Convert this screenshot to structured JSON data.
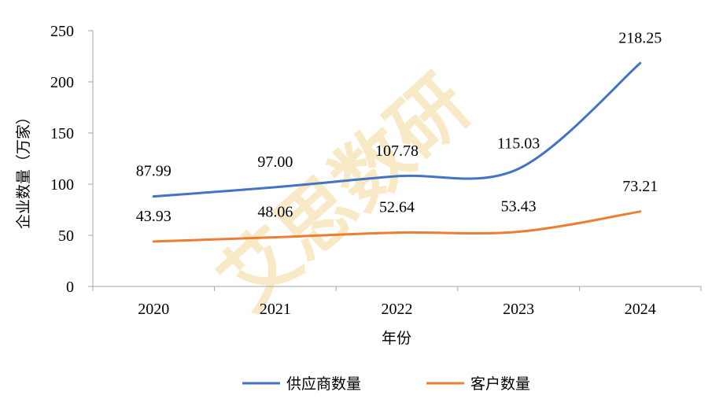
{
  "chart_data": {
    "type": "line",
    "categories": [
      "2020",
      "2021",
      "2022",
      "2023",
      "2024"
    ],
    "series": [
      {
        "name": "供应商数量",
        "values": [
          87.99,
          97.0,
          107.78,
          115.03,
          218.25
        ],
        "labels": [
          "87.99",
          "97.00",
          "107.78",
          "115.03",
          "218.25"
        ],
        "color": "#4472c4"
      },
      {
        "name": "客户数量",
        "values": [
          43.93,
          48.06,
          52.64,
          53.43,
          73.21
        ],
        "labels": [
          "43.93",
          "48.06",
          "52.64",
          "53.43",
          "73.21"
        ],
        "color": "#ed7d31"
      }
    ],
    "xlabel": "年份",
    "ylabel": "企业数量（万家）",
    "ylim": [
      0,
      250
    ],
    "yticks": [
      "0",
      "50",
      "100",
      "150",
      "200",
      "250"
    ],
    "grid": false,
    "legend": "bottom",
    "smooth": true
  },
  "watermark": "艾思数研"
}
